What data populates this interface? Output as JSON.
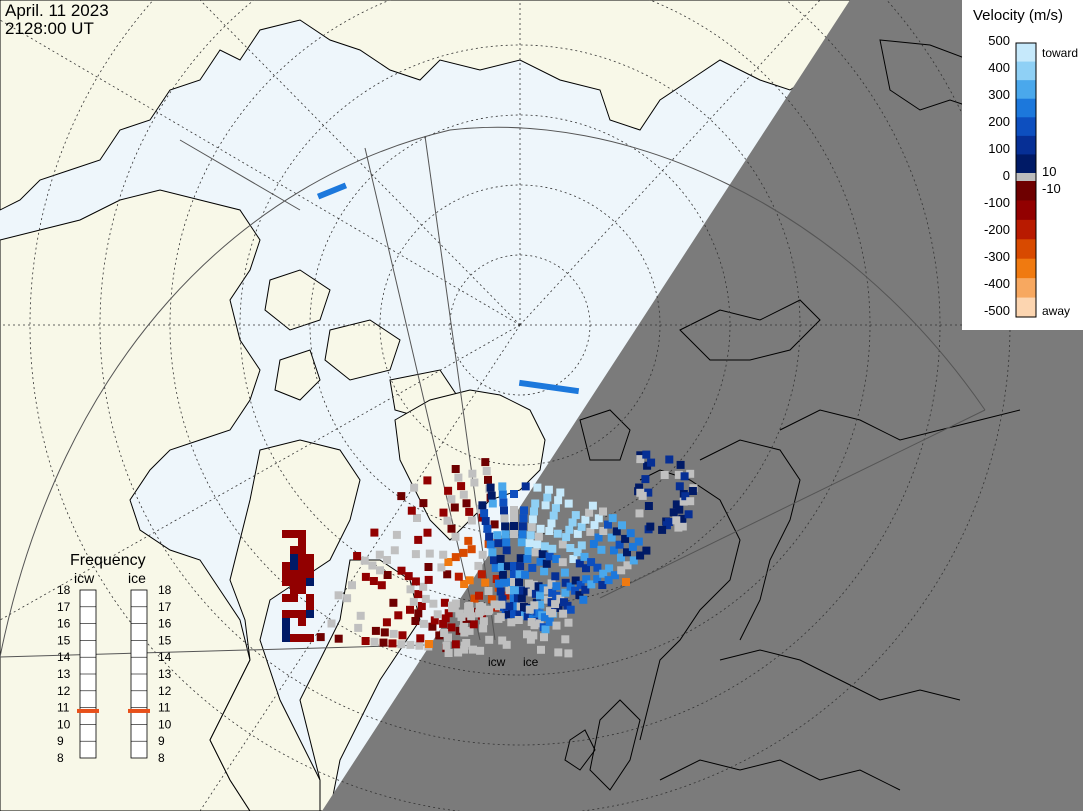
{
  "header": {
    "date": "April. 11 2023",
    "time": "2128:00 UT"
  },
  "colorbar": {
    "title": "Velocity (m/s)",
    "toward_label": "toward",
    "away_label": "away",
    "positive_ticks": [
      "500",
      "400",
      "300",
      "200",
      "100",
      "10"
    ],
    "zero_tick": "0",
    "negative_ticks": [
      "-10",
      "-100",
      "-200",
      "-300",
      "-400",
      "-500"
    ],
    "positive_colors": [
      "#c6e9fb",
      "#8fd0f5",
      "#4aa8ec",
      "#1c78dc",
      "#0d4fbf",
      "#062f95",
      "#001a66"
    ],
    "negative_colors": [
      "#6e0000",
      "#920000",
      "#b81a00",
      "#d84a00",
      "#f07a10",
      "#f7a860",
      "#fcd5b0"
    ],
    "zero_color": "#bcbcbc"
  },
  "frequency": {
    "title": "Frequency",
    "columns": [
      {
        "name": "icw",
        "value": 10.8
      },
      {
        "name": "ice",
        "value": 10.8
      }
    ],
    "ticks": [
      "18",
      "17",
      "16",
      "15",
      "14",
      "13",
      "12",
      "11",
      "10",
      "9",
      "8"
    ]
  },
  "radars": {
    "site_labels": [
      "icw",
      "ice"
    ]
  },
  "colors": {
    "ocean": "#eef6fb",
    "land": "#f8f8e8",
    "night": "#7b7b7b",
    "coast": "#000000",
    "ground_scatter": "#c0c0c0",
    "freq_marker": "#e8501a"
  }
}
